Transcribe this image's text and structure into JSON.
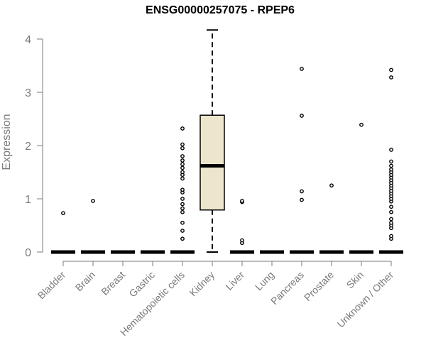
{
  "chart_data": {
    "type": "box",
    "title": "ENSG00000257075 - RPEP6",
    "xlabel": "",
    "ylabel": "Expression",
    "ylim": [
      0,
      4.2
    ],
    "yticks": [
      0,
      1,
      2,
      3,
      4
    ],
    "grid": false,
    "legend": "none",
    "box_color": "#ede6cd",
    "categories": [
      "Bladder",
      "Brain",
      "Breast",
      "Gastric",
      "Hematopoietic cells",
      "Kidney",
      "Liver",
      "Lung",
      "Pancreas",
      "Prostate",
      "Skin",
      "Unknown / Other"
    ],
    "boxes": [
      {
        "category": "Bladder",
        "min": 0,
        "q1": 0,
        "median": 0,
        "q3": 0,
        "max": 0,
        "outliers": [
          0.73
        ]
      },
      {
        "category": "Brain",
        "min": 0,
        "q1": 0,
        "median": 0,
        "q3": 0,
        "max": 0,
        "outliers": [
          0.96
        ]
      },
      {
        "category": "Breast",
        "min": 0,
        "q1": 0,
        "median": 0,
        "q3": 0,
        "max": 0,
        "outliers": []
      },
      {
        "category": "Gastric",
        "min": 0,
        "q1": 0,
        "median": 0,
        "q3": 0,
        "max": 0,
        "outliers": []
      },
      {
        "category": "Hematopoietic cells",
        "min": 0,
        "q1": 0,
        "median": 0,
        "q3": 0,
        "max": 0,
        "outliers": [
          0.25,
          0.4,
          0.55,
          0.75,
          0.82,
          0.9,
          1.0,
          1.12,
          1.17,
          1.38,
          1.45,
          1.5,
          1.58,
          1.65,
          1.72,
          1.8,
          1.95,
          2.02,
          2.32
        ]
      },
      {
        "category": "Kidney",
        "min": 0,
        "q1": 0.79,
        "median": 1.62,
        "q3": 2.57,
        "max": 4.17,
        "outliers": []
      },
      {
        "category": "Liver",
        "min": 0,
        "q1": 0,
        "median": 0,
        "q3": 0,
        "max": 0,
        "outliers": [
          0.17,
          0.22,
          0.94,
          0.96
        ]
      },
      {
        "category": "Lung",
        "min": 0,
        "q1": 0,
        "median": 0,
        "q3": 0,
        "max": 0,
        "outliers": []
      },
      {
        "category": "Pancreas",
        "min": 0,
        "q1": 0,
        "median": 0,
        "q3": 0,
        "max": 0,
        "outliers": [
          0.98,
          1.14,
          2.56,
          3.44
        ]
      },
      {
        "category": "Prostate",
        "min": 0,
        "q1": 0,
        "median": 0,
        "q3": 0,
        "max": 0,
        "outliers": [
          1.25
        ]
      },
      {
        "category": "Skin",
        "min": 0,
        "q1": 0,
        "median": 0,
        "q3": 0,
        "max": 0,
        "outliers": [
          2.39
        ]
      },
      {
        "category": "Unknown / Other",
        "min": 0,
        "q1": 0,
        "median": 0,
        "q3": 0,
        "max": 0,
        "outliers": [
          0.25,
          0.3,
          0.45,
          0.5,
          0.55,
          0.62,
          0.75,
          0.85,
          0.95,
          1.0,
          1.05,
          1.1,
          1.15,
          1.2,
          1.25,
          1.3,
          1.35,
          1.4,
          1.45,
          1.5,
          1.55,
          1.62,
          1.7,
          1.92,
          3.28,
          3.42
        ]
      }
    ]
  }
}
